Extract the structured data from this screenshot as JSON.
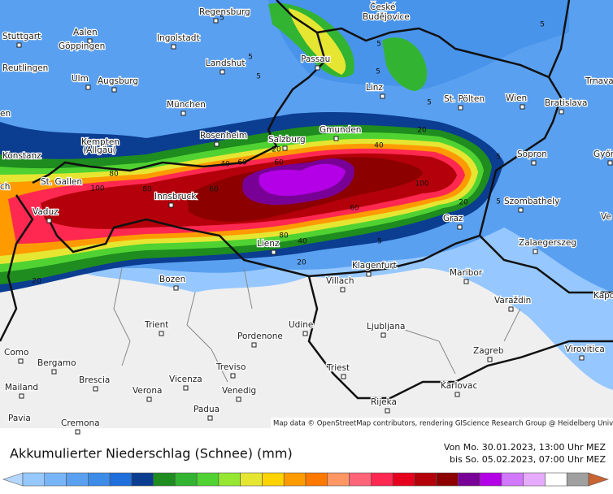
{
  "map": {
    "cities": [
      "Regensburg",
      "České",
      "Budějovice",
      "Stuttgart",
      "Aalen",
      "Göppingen",
      "Ingolstadt",
      "Reutlingen",
      "Landshut",
      "Passau",
      "Ulm",
      "Augsburg",
      "Linz",
      "St. Pölten",
      "Wien",
      "Bratislava",
      "Trnava",
      "en",
      "München",
      "Kempten",
      "(Allgäu)",
      "Rosenheim",
      "Gmunden",
      "Salzburg",
      "Konstanz",
      "Sopron",
      "Győr",
      "St. Gallen",
      "ch",
      "Innsbruck",
      "Szombathely",
      "Vaduz",
      "Graz",
      "Ve",
      "Zalaegerszeg",
      "Lienz",
      "Klagenfurt",
      "Maribor",
      "Bozen",
      "Villach",
      "Kapo",
      "Varaždin",
      "Trient",
      "Udine",
      "Ljubljana",
      "Pordenone",
      "Como",
      "Zagreb",
      "Virovitica",
      "Bergamo",
      "Treviso",
      "Triest",
      "Vicenza",
      "Brescia",
      "Mailand",
      "Verona",
      "Venedig",
      "Karlovac",
      "Rijeka",
      "Padua",
      "Pavia",
      "Cremona"
    ],
    "contour_labels": [
      5,
      5,
      5,
      5,
      5,
      5,
      5,
      5,
      5,
      5,
      20,
      20,
      20,
      20,
      20,
      40,
      40,
      40,
      60,
      60,
      60,
      60,
      80,
      80,
      80,
      100,
      100
    ],
    "attribution": "Map data © OpenStreetMap contributors, rendering GIScience Research Group @ Heidelberg University"
  },
  "legend": {
    "title": "Akkumulierter Niederschlag (Schnee) (mm)",
    "period_from": "Von Mo. 30.01.2023, 13:00 Uhr MEZ",
    "period_to": "bis So. 05.02.2023, 07:00 Uhr MEZ",
    "colors": [
      "#b4d7ff",
      "#96c8ff",
      "#78b4f8",
      "#5aa0f0",
      "#3c8ce8",
      "#1e6edc",
      "#0b3d91",
      "#1e8c1e",
      "#32b432",
      "#50d232",
      "#96e632",
      "#e6e632",
      "#ffd200",
      "#ff9b00",
      "#ff7800",
      "#ff9664",
      "#ff6478",
      "#ff2850",
      "#e6001e",
      "#b4000a",
      "#8c0000",
      "#780096",
      "#b400e6",
      "#d278ff",
      "#e6aaff",
      "#ffffff",
      "#a0a0a0",
      "#c86432"
    ]
  }
}
